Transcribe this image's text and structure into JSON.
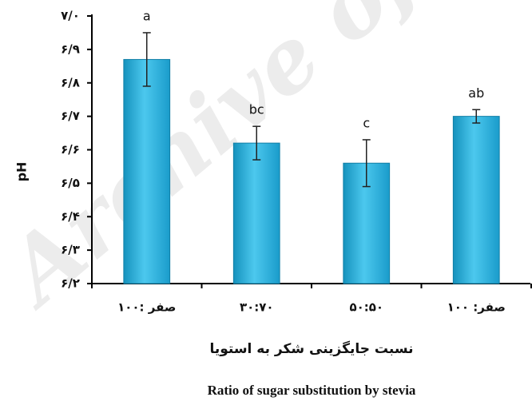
{
  "chart_data": {
    "type": "bar",
    "categories": [
      "۱۰۰: صفر",
      "۳۰:۷۰",
      "۵۰:۵۰",
      "صفر: ۱۰۰"
    ],
    "values": [
      6.87,
      6.62,
      6.56,
      6.7
    ],
    "errors": [
      0.08,
      0.05,
      0.07,
      0.02
    ],
    "significance_letters": [
      "a",
      "bc",
      "c",
      "ab"
    ],
    "color": "#2bb7e2",
    "y_label": "pH",
    "x_label": "نسبت جایگزینی شکر به استویا",
    "x_label_en": "Ratio of sugar substitution by stevia",
    "watermark": "Archive of",
    "ylim": [
      6.2,
      7.0
    ],
    "yticks": [
      {
        "value": 6.2,
        "label": "۶/۲"
      },
      {
        "value": 6.3,
        "label": "۶/۳"
      },
      {
        "value": 6.4,
        "label": "۶/۴"
      },
      {
        "value": 6.5,
        "label": "۶/۵"
      },
      {
        "value": 6.6,
        "label": "۶/۶"
      },
      {
        "value": 6.7,
        "label": "۶/۷"
      },
      {
        "value": 6.8,
        "label": "۶/۸"
      },
      {
        "value": 6.9,
        "label": "۶/۹"
      },
      {
        "value": 7.0,
        "label": "۷/۰"
      }
    ],
    "grid": false
  }
}
